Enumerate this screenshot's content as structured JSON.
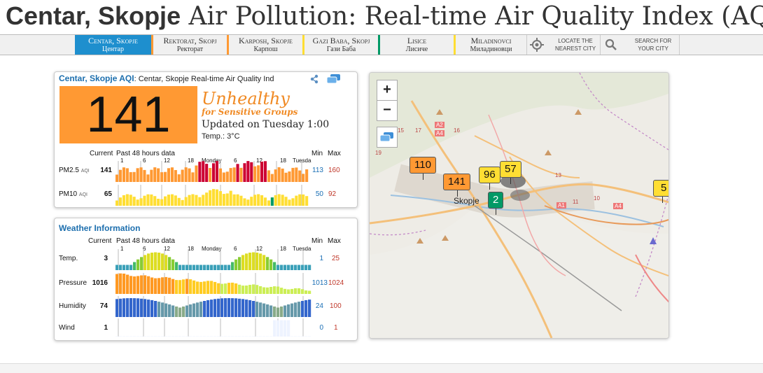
{
  "page": {
    "title_bold": "Centar, Skopje",
    "title_rest": " Air Pollution: Real-time Air Quality Index (AQI)"
  },
  "nav": {
    "stations": [
      {
        "en": "Centar, Skopje",
        "local": "Центар",
        "active": true,
        "color": "#1e8fce"
      },
      {
        "en": "Rektorat, Skopj",
        "local": "Ректорат",
        "active": false,
        "color": "#ff9933"
      },
      {
        "en": "Karposh, Skopje",
        "local": "Карпош",
        "active": false,
        "color": "#ff9933"
      },
      {
        "en": "Gazi Baba, Skopj",
        "local": "Гази Баба",
        "active": false,
        "color": "#009966"
      },
      {
        "en": "Lisice",
        "local": "Лисиче",
        "active": false,
        "color": "#ffde33"
      },
      {
        "en": "Miladinovci",
        "local": "Миладиновци",
        "active": false,
        "color": "#ffde33"
      }
    ],
    "locate": {
      "line1": "LOCATE THE",
      "line2": "NEAREST CITY",
      "icon": "crosshair-icon"
    },
    "search": {
      "line1": "SEARCH FOR",
      "line2": "YOUR CITY",
      "icon": "search-icon"
    }
  },
  "aqi_panel": {
    "head_bold": "Centar, Skopje AQI",
    "head_sub": ": Centar, Skopje Real-time Air Quality Ind",
    "share_icon": "share-icon",
    "widget_icon": "widget-icon",
    "aqi": "141",
    "aqi_color": "#ff9933",
    "level": "Unhealthy",
    "level_sub": "for Sensitive Groups",
    "updated": "Updated on Tuesday 1:00",
    "temp": "Temp.: 3°C",
    "col_current": "Current",
    "col_past": "Past 48 hours data",
    "col_min": "Min",
    "col_max": "Max",
    "ticks": [
      "1",
      "6",
      "12",
      "18",
      "Monday",
      "6",
      "12",
      "18",
      "Tuesda"
    ],
    "rows": [
      {
        "label": "PM2.5",
        "unit": "AQI",
        "current": "141",
        "min": "113",
        "max": "160"
      },
      {
        "label": "PM10",
        "unit": "AQI",
        "current": "65",
        "min": "50",
        "max": "92"
      }
    ]
  },
  "weather_panel": {
    "head": "Weather Information",
    "col_current": "Current",
    "col_past": "Past 48 hours data",
    "col_min": "Min",
    "col_max": "Max",
    "ticks": [
      "1",
      "6",
      "12",
      "18",
      "Monday",
      "6",
      "12",
      "18",
      "Tuesda"
    ],
    "rows": [
      {
        "label": "Temp.",
        "current": "3",
        "min": "1",
        "max": "25"
      },
      {
        "label": "Pressure",
        "current": "1016",
        "min": "1013",
        "max": "1024"
      },
      {
        "label": "Humidity",
        "current": "74",
        "min": "24",
        "max": "100"
      },
      {
        "label": "Wind",
        "current": "1",
        "min": "0",
        "max": "1"
      }
    ]
  },
  "map": {
    "zoom_in": "+",
    "zoom_out": "−",
    "layers_icon": "layers-icon",
    "city_label": "Skopje",
    "road_labels": [
      "A2",
      "A4",
      "A1",
      "A4",
      "16",
      "15",
      "17",
      "13",
      "11",
      "10",
      "19"
    ],
    "markers": [
      {
        "value": "110",
        "color": "#ff9933"
      },
      {
        "value": "141",
        "color": "#ff9933"
      },
      {
        "value": "96",
        "color": "#ffde33"
      },
      {
        "value": "57",
        "color": "#ffde33"
      },
      {
        "value": "2",
        "color": "#009966"
      },
      {
        "value": "5",
        "color": "#ffde33"
      }
    ]
  }
}
